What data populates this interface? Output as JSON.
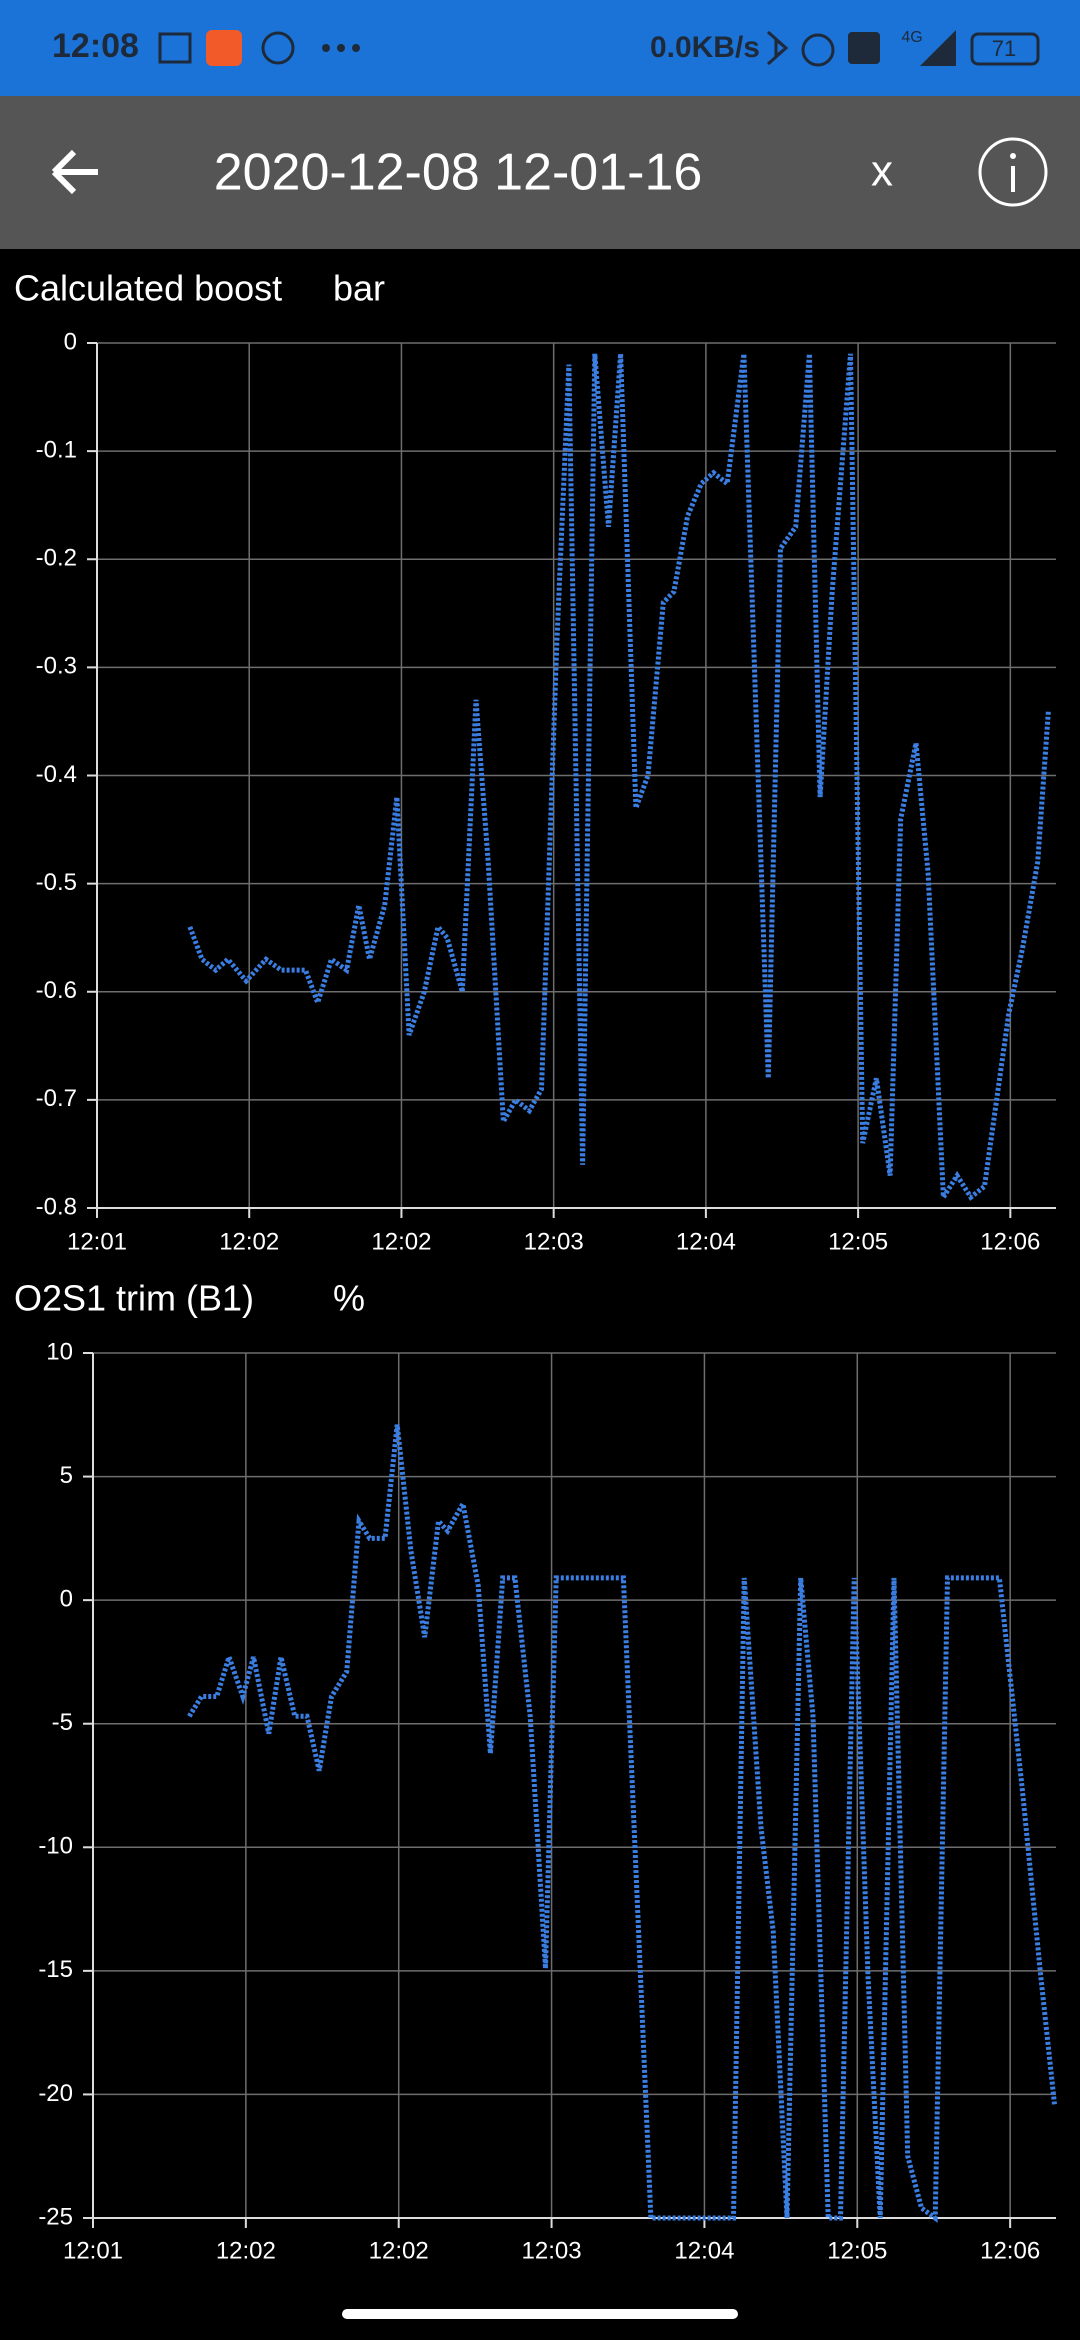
{
  "status_bar": {
    "time": "12:08",
    "net_speed": "0.0KB/s",
    "network": "4G",
    "battery": "71"
  },
  "toolbar": {
    "title": "2020-12-08 12-01-16",
    "close": "x"
  },
  "chart_data": [
    {
      "type": "line",
      "title": "Calculated boost",
      "unit": "bar",
      "x": [
        0.61,
        0.69,
        0.78,
        0.86,
        0.98,
        1.11,
        1.21,
        1.37,
        1.45,
        1.54,
        1.64,
        1.72,
        1.79,
        1.89,
        1.97,
        2.05,
        2.15,
        2.24,
        2.3,
        2.4,
        2.49,
        2.57,
        2.67,
        2.75,
        2.84,
        2.92,
        3.02,
        3.1,
        3.19,
        3.27,
        3.36,
        3.44,
        3.54,
        3.62,
        3.72,
        3.79,
        3.88,
        3.97,
        4.05,
        4.14,
        4.25,
        4.41,
        4.49,
        4.59,
        4.68,
        4.75,
        4.83,
        4.95,
        5.03,
        5.12,
        5.21,
        5.28,
        5.38,
        5.46,
        5.56,
        5.65,
        5.74,
        5.83,
        5.91,
        5.99,
        6.08,
        6.18,
        6.25
      ],
      "series": [
        {
          "color": "#3b7ee2",
          "values": [
            -0.54,
            -0.57,
            -0.58,
            -0.57,
            -0.59,
            -0.57,
            -0.58,
            -0.58,
            -0.61,
            -0.57,
            -0.58,
            -0.52,
            -0.57,
            -0.52,
            -0.42,
            -0.64,
            -0.6,
            -0.54,
            -0.55,
            -0.6,
            -0.33,
            -0.48,
            -0.72,
            -0.7,
            -0.71,
            -0.69,
            -0.28,
            -0.02,
            -0.76,
            -0.01,
            -0.17,
            -0.01,
            -0.43,
            -0.4,
            -0.24,
            -0.23,
            -0.16,
            -0.13,
            -0.12,
            -0.13,
            -0.01,
            -0.68,
            -0.19,
            -0.17,
            -0.01,
            -0.42,
            -0.23,
            -0.01,
            -0.74,
            -0.68,
            -0.77,
            -0.44,
            -0.37,
            -0.49,
            -0.79,
            -0.77,
            -0.79,
            -0.78,
            -0.7,
            -0.62,
            -0.56,
            -0.48,
            -0.34
          ]
        }
      ],
      "xlim": [
        0,
        6.3
      ],
      "ylim": [
        -0.8,
        0
      ],
      "xticks": [
        {
          "value": 0,
          "label": "12:01"
        },
        {
          "value": 1,
          "label": "12:02"
        },
        {
          "value": 2,
          "label": "12:02"
        },
        {
          "value": 3,
          "label": "12:03"
        },
        {
          "value": 4,
          "label": "12:04"
        },
        {
          "value": 5,
          "label": "12:05"
        },
        {
          "value": 6,
          "label": "12:06"
        }
      ],
      "yticks": [
        0,
        -0.1,
        -0.2,
        -0.3,
        -0.4,
        -0.5,
        -0.6,
        -0.7,
        -0.8
      ],
      "grid": true
    },
    {
      "type": "line",
      "title": "O2S1 trim (B1)",
      "unit": "%",
      "x": [
        0.63,
        0.71,
        0.81,
        0.89,
        0.98,
        1.05,
        1.15,
        1.23,
        1.32,
        1.4,
        1.48,
        1.56,
        1.66,
        1.74,
        1.81,
        1.91,
        1.99,
        2.08,
        2.17,
        2.26,
        2.32,
        2.42,
        2.52,
        2.6,
        2.68,
        2.76,
        2.86,
        2.96,
        3.03,
        3.47,
        3.65,
        4.19,
        4.26,
        4.37,
        4.45,
        4.54,
        4.63,
        4.71,
        4.81,
        4.89,
        4.98,
        5.07,
        5.15,
        5.24,
        5.33,
        5.42,
        5.51,
        5.59,
        5.93,
        6.08,
        6.2,
        6.29
      ],
      "series": [
        {
          "color": "#3b7ee2",
          "values": [
            -4.7,
            -3.9,
            -3.9,
            -2.3,
            -3.9,
            -2.3,
            -5.4,
            -2.3,
            -4.7,
            -4.7,
            -6.9,
            -3.9,
            -2.9,
            3.2,
            2.5,
            2.5,
            7.1,
            2.0,
            -1.5,
            3.2,
            2.8,
            3.9,
            0.6,
            -6.2,
            0.9,
            0.9,
            -4.7,
            -14.9,
            0.9,
            0.9,
            -25,
            -25,
            0.9,
            -9.2,
            -13.4,
            -25,
            0.9,
            -4.7,
            -25,
            -25,
            0.9,
            -15.2,
            -25,
            0.9,
            -22.5,
            -24.6,
            -25,
            0.9,
            0.9,
            -7.7,
            -15.2,
            -20.4
          ]
        }
      ],
      "xlim": [
        0,
        6.3
      ],
      "ylim": [
        -25,
        10
      ],
      "xticks": [
        {
          "value": 0,
          "label": "12:01"
        },
        {
          "value": 1,
          "label": "12:02"
        },
        {
          "value": 2,
          "label": "12:02"
        },
        {
          "value": 3,
          "label": "12:03"
        },
        {
          "value": 4,
          "label": "12:04"
        },
        {
          "value": 5,
          "label": "12:05"
        },
        {
          "value": 6,
          "label": "12:06"
        }
      ],
      "yticks": [
        10,
        5,
        0,
        -5,
        -10,
        -15,
        -20,
        -25
      ],
      "grid": true
    }
  ]
}
